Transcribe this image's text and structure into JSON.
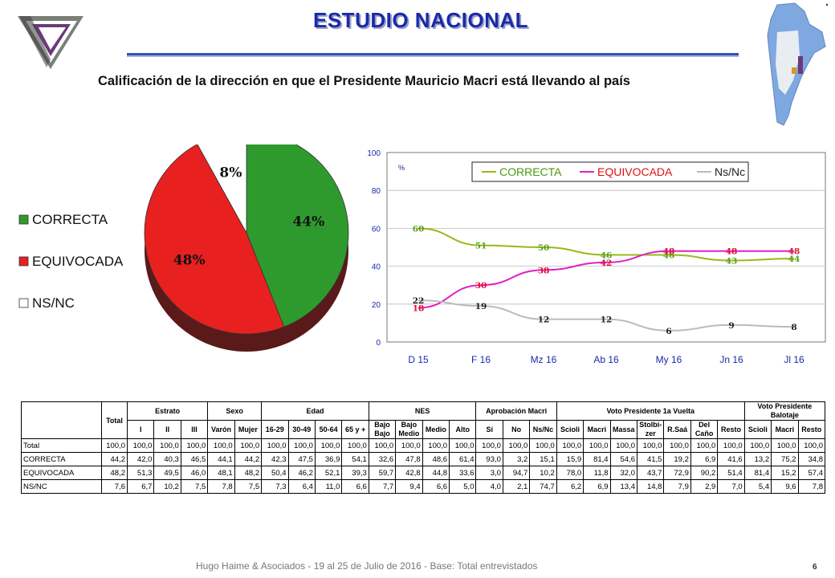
{
  "title": "ESTUDIO NACIONAL",
  "subtitle": "Calificación de la dirección en que el Presidente Mauricio Macri está llevando al país",
  "colors": {
    "correcta": "#2e9a2e",
    "equivocada": "#e82020",
    "nsnc": "#ffffff",
    "line_correcta": "#9ab81a",
    "line_equivocada": "#e020c8",
    "line_nsnc": "#bbbbbb",
    "title": "#1a2aa8"
  },
  "chart_data": [
    {
      "type": "pie",
      "labels": [
        "CORRECTA",
        "EQUIVOCADA",
        "NS/NC"
      ],
      "values": [
        44,
        48,
        8
      ],
      "slice_labels": [
        "44%",
        "48%",
        "8%"
      ],
      "legend": "left"
    },
    {
      "type": "line",
      "x": [
        "D 15",
        "F 16",
        "Mz 16",
        "Ab 16",
        "My 16",
        "Jn 16",
        "Jl 16"
      ],
      "ylim": [
        0,
        100
      ],
      "yticks": [
        "0",
        "20",
        "40",
        "60",
        "80",
        "100"
      ],
      "ylabel": "%",
      "legend": "top",
      "grid": true,
      "series": [
        {
          "name": "CORRECTA",
          "values": [
            60,
            51,
            50,
            46,
            46,
            43,
            44
          ]
        },
        {
          "name": "EQUIVOCADA",
          "values": [
            18,
            30,
            38,
            42,
            48,
            48,
            48
          ]
        },
        {
          "name": "Ns/Nc",
          "values": [
            22,
            19,
            12,
            12,
            6,
            9,
            8
          ]
        }
      ]
    }
  ],
  "table": {
    "total_header": "Total",
    "groups": [
      "Estrato",
      "Sexo",
      "Edad",
      "NES",
      "Aprobación Macri",
      "Voto Presidente 1a Vuelta",
      "Voto Presidente Balotaje"
    ],
    "columns": [
      "I",
      "II",
      "III",
      "Varón",
      "Mujer",
      "16-29",
      "30-49",
      "50-64",
      "65 y +",
      "Bajo Bajo",
      "Bajo Medio",
      "Medio",
      "Alto",
      "Sí",
      "No",
      "Ns/Nc",
      "Scioli",
      "Macri",
      "Massa",
      "Stolbi-zer",
      "R.Saá",
      "Del Caño",
      "Resto",
      "Scioli",
      "Macri",
      "Resto"
    ],
    "rows": [
      {
        "label": "Total",
        "values": [
          "100,0",
          "100,0",
          "100,0",
          "100,0",
          "100,0",
          "100,0",
          "100,0",
          "100,0",
          "100,0",
          "100,0",
          "100,0",
          "100,0",
          "100,0",
          "100,0",
          "100,0",
          "100,0",
          "100,0",
          "100,0",
          "100,0",
          "100,0",
          "100,0",
          "100,0",
          "100,0",
          "100,0",
          "100,0",
          "100,0",
          "100,0"
        ]
      },
      {
        "label": "CORRECTA",
        "values": [
          "44,2",
          "42,0",
          "40,3",
          "46,5",
          "44,1",
          "44,2",
          "42,3",
          "47,5",
          "36,9",
          "54,1",
          "32,6",
          "47,8",
          "48,6",
          "61,4",
          "93,0",
          "3,2",
          "15,1",
          "15,9",
          "81,4",
          "54,6",
          "41,5",
          "19,2",
          "6,9",
          "41,6",
          "13,2",
          "75,2",
          "34,8"
        ]
      },
      {
        "label": "EQUIVOCADA",
        "values": [
          "48,2",
          "51,3",
          "49,5",
          "46,0",
          "48,1",
          "48,2",
          "50,4",
          "46,2",
          "52,1",
          "39,3",
          "59,7",
          "42,8",
          "44,8",
          "33,6",
          "3,0",
          "94,7",
          "10,2",
          "78,0",
          "11,8",
          "32,0",
          "43,7",
          "72,9",
          "90,2",
          "51,4",
          "81,4",
          "15,2",
          "57,4"
        ]
      },
      {
        "label": "NS/NC",
        "values": [
          "7,6",
          "6,7",
          "10,2",
          "7,5",
          "7,8",
          "7,5",
          "7,3",
          "6,4",
          "11,0",
          "6,6",
          "7,7",
          "9,4",
          "6,6",
          "5,0",
          "4,0",
          "2,1",
          "74,7",
          "6,2",
          "6,9",
          "13,4",
          "14,8",
          "7,9",
          "2,9",
          "7,0",
          "5,4",
          "9,6",
          "7,8"
        ]
      }
    ]
  },
  "footer": "Hugo Haime & Asociados    -  19 al 25 de Julio  de 2016    -      Base: Total entrevistados",
  "page_number": "6"
}
